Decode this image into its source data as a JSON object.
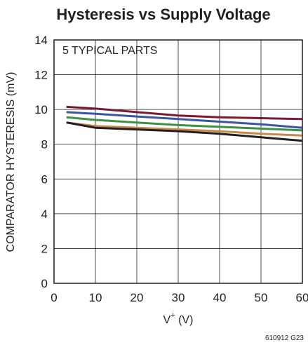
{
  "chart_data": {
    "type": "line",
    "title": "Hysteresis vs Supply Voltage",
    "xlabel_main": "V",
    "xlabel_sup": "+",
    "xlabel_unit": " (V)",
    "ylabel": "COMPARATOR HYSTERESIS (mV)",
    "annotation": "5 TYPICAL PARTS",
    "figure_code": "610912 G23",
    "xlim": [
      0,
      60
    ],
    "ylim": [
      0,
      14
    ],
    "x_ticks": [
      "0",
      "10",
      "20",
      "30",
      "40",
      "50",
      "60"
    ],
    "y_ticks": [
      "0",
      "2",
      "4",
      "6",
      "8",
      "10",
      "12",
      "14"
    ],
    "grid": true,
    "x": [
      3,
      10,
      20,
      30,
      40,
      50,
      60
    ],
    "series": [
      {
        "color": "#7b1a30",
        "values": [
          10.15,
          10.05,
          9.85,
          9.65,
          9.55,
          9.5,
          9.45
        ]
      },
      {
        "color": "#3b54a6",
        "values": [
          9.85,
          9.75,
          9.6,
          9.45,
          9.3,
          9.15,
          8.95
        ]
      },
      {
        "color": "#3e9046",
        "values": [
          9.55,
          9.4,
          9.25,
          9.1,
          9.0,
          8.9,
          8.8
        ]
      },
      {
        "color": "#c8884c",
        "values": [
          9.25,
          9.05,
          8.95,
          8.85,
          8.75,
          8.6,
          8.5
        ]
      },
      {
        "color": "#231f20",
        "values": [
          9.25,
          8.95,
          8.85,
          8.75,
          8.6,
          8.4,
          8.2
        ]
      }
    ]
  }
}
